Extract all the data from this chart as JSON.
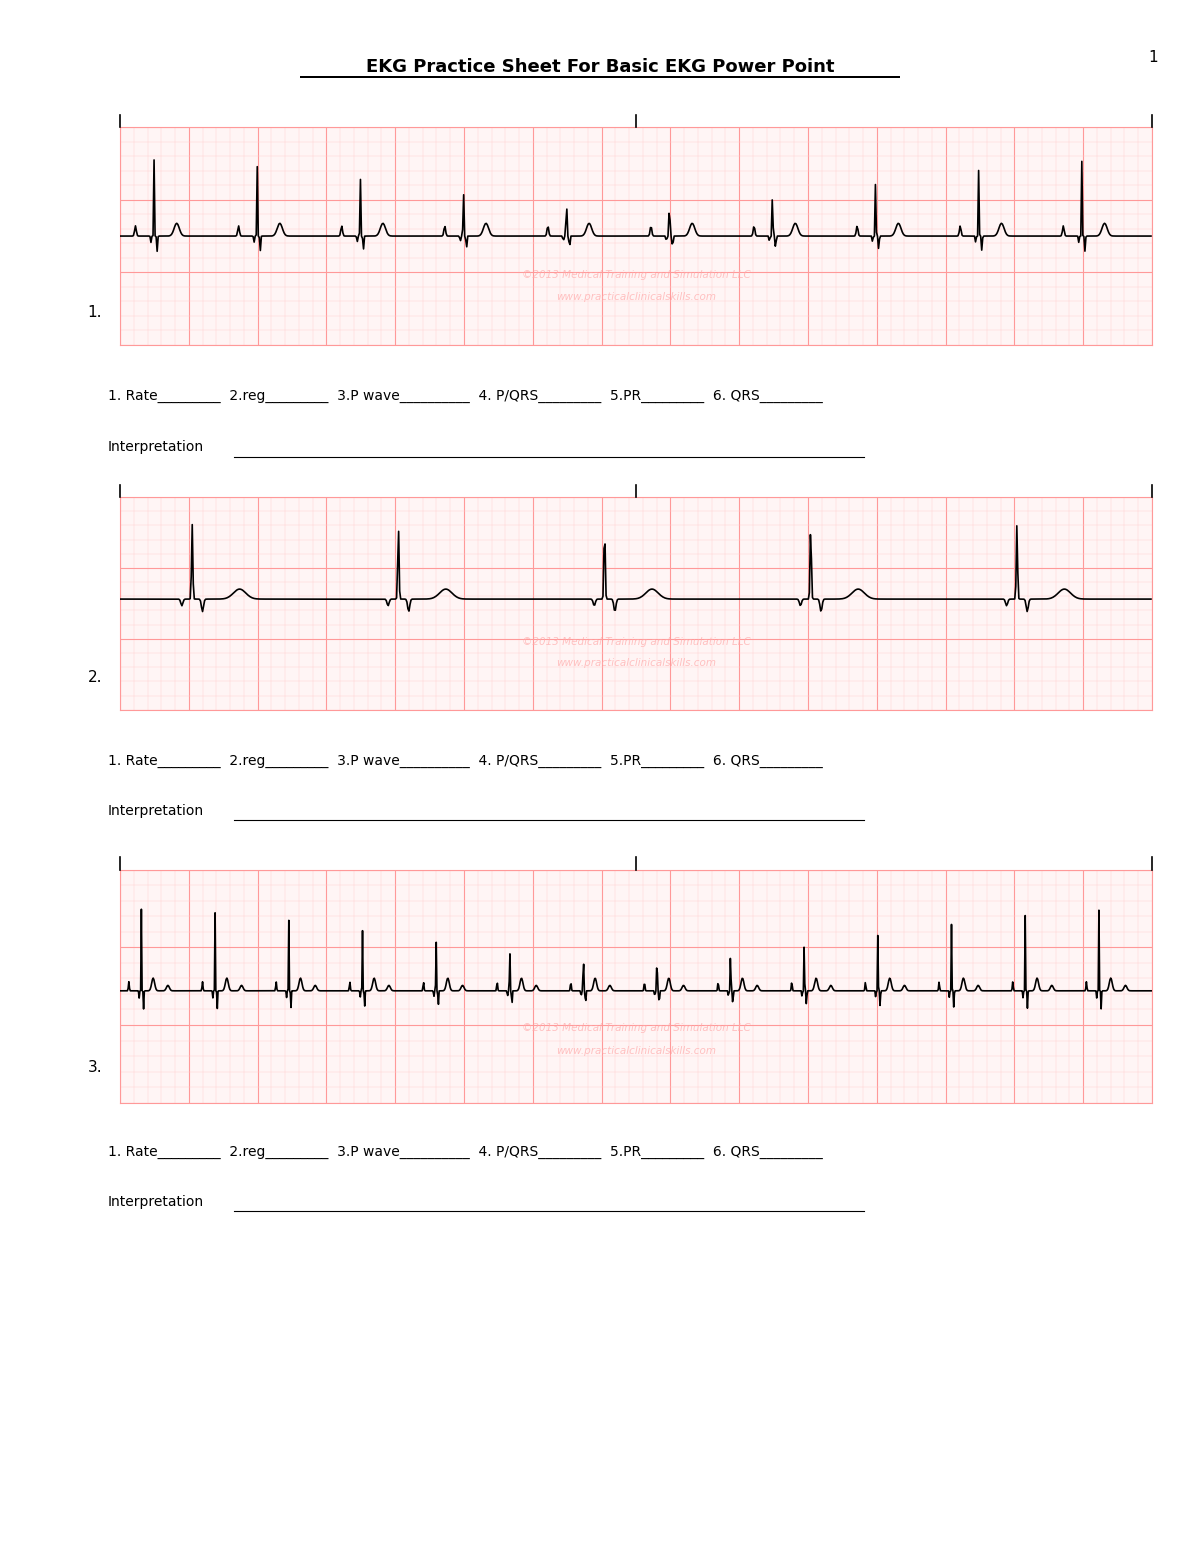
{
  "title": "EKG Practice Sheet For Basic EKG Power Point",
  "page_number": "1",
  "background_color": "#ffffff",
  "grid_bg": "#fff0f0",
  "grid_major_color": "#ff9999",
  "grid_minor_color": "#ffcccc",
  "watermark_line1": "©2013 Medical Training and Simulation LLC",
  "watermark_line2": "www.practicalclinicalskills.com",
  "form_line1": "1. Rate_________ 2.reg_________ 3.P wave__________ 4. P/QRS_________ 5.PR_________ 6. QRS_________",
  "form_line2": "Interpretation_______________________________________________________________",
  "strip_labels": [
    "1.",
    "2.",
    "3."
  ],
  "num_strips": 3,
  "ekg1_beats_per_strip": 10,
  "ekg2_beats_per_strip": 5,
  "ekg3_beats_per_strip": 14
}
